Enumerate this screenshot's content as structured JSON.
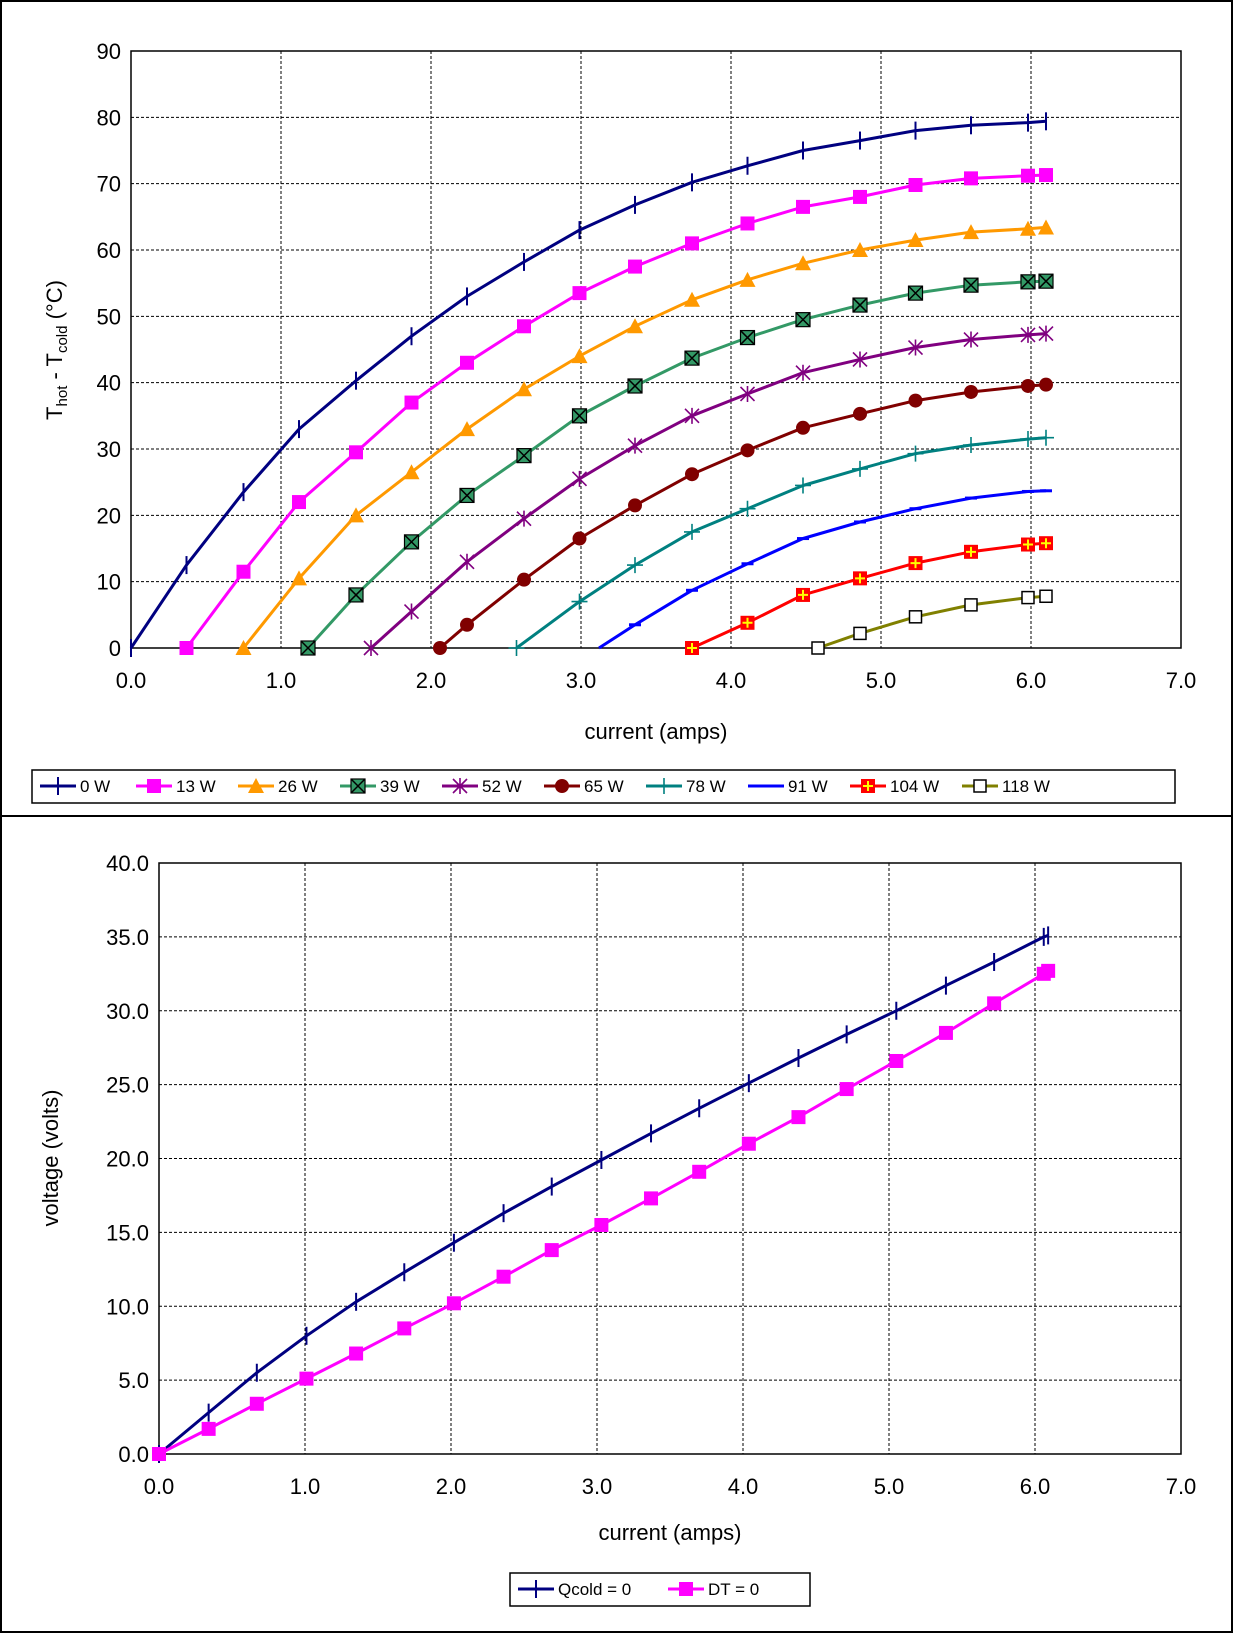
{
  "chart_data": [
    {
      "type": "line",
      "xlabel": "current (amps)",
      "ylabel": {
        "main": "T",
        "sub1": "hot",
        "mid": " - T",
        "sub2": "cold",
        "tail": " (°C)"
      },
      "xlim": [
        0,
        7
      ],
      "ylim": [
        0,
        90
      ],
      "x_ticks": [
        "0.0",
        "1.0",
        "2.0",
        "3.0",
        "4.0",
        "5.0",
        "6.0",
        "7.0"
      ],
      "y_ticks": [
        "0",
        "10",
        "20",
        "30",
        "40",
        "50",
        "60",
        "70",
        "80",
        "90"
      ],
      "grid": true,
      "legend_position": "bottom",
      "series": [
        {
          "name": "0 W",
          "color": "#000080",
          "marker": "vtick",
          "x": [
            0.0,
            0.37,
            0.75,
            1.12,
            1.5,
            1.87,
            2.24,
            2.62,
            2.99,
            3.36,
            3.74,
            4.11,
            4.48,
            4.86,
            5.23,
            5.6,
            5.98,
            6.1
          ],
          "y": [
            0,
            12.5,
            23.5,
            33,
            40.3,
            47,
            53,
            58.2,
            63,
            66.8,
            70.2,
            72.7,
            75,
            76.5,
            78,
            78.8,
            79.2,
            79.4
          ]
        },
        {
          "name": "13 W",
          "color": "#FF00FF",
          "marker": "square",
          "x": [
            0.37,
            0.75,
            1.12,
            1.5,
            1.87,
            2.24,
            2.62,
            2.99,
            3.36,
            3.74,
            4.11,
            4.48,
            4.86,
            5.23,
            5.6,
            5.98,
            6.1
          ],
          "y": [
            0,
            11.5,
            22,
            29.5,
            37,
            43,
            48.5,
            53.5,
            57.5,
            61,
            64,
            66.5,
            68,
            69.8,
            70.8,
            71.2,
            71.3
          ]
        },
        {
          "name": "26 W",
          "color": "#FF9900",
          "marker": "triangle",
          "x": [
            0.75,
            1.12,
            1.5,
            1.87,
            2.24,
            2.62,
            2.99,
            3.36,
            3.74,
            4.11,
            4.48,
            4.86,
            5.23,
            5.6,
            5.98,
            6.1
          ],
          "y": [
            0,
            10.5,
            20,
            26.5,
            33,
            39,
            44,
            48.5,
            52.5,
            55.5,
            58,
            60,
            61.5,
            62.7,
            63.2,
            63.4
          ]
        },
        {
          "name": "39 W",
          "color": "#339966",
          "marker": "xsquare",
          "x": [
            1.18,
            1.5,
            1.87,
            2.24,
            2.62,
            2.99,
            3.36,
            3.74,
            4.11,
            4.48,
            4.86,
            5.23,
            5.6,
            5.98,
            6.1
          ],
          "y": [
            0,
            8,
            16,
            23,
            29,
            35,
            39.5,
            43.7,
            46.8,
            49.5,
            51.7,
            53.5,
            54.7,
            55.2,
            55.3
          ]
        },
        {
          "name": "52 W",
          "color": "#800080",
          "marker": "star",
          "x": [
            1.6,
            1.87,
            2.24,
            2.62,
            2.99,
            3.36,
            3.74,
            4.11,
            4.48,
            4.86,
            5.23,
            5.6,
            5.98,
            6.1
          ],
          "y": [
            0,
            5.5,
            13,
            19.5,
            25.5,
            30.5,
            35,
            38.3,
            41.5,
            43.5,
            45.3,
            46.5,
            47.2,
            47.4
          ]
        },
        {
          "name": "65 W",
          "color": "#800000",
          "marker": "circle",
          "x": [
            2.06,
            2.24,
            2.62,
            2.99,
            3.36,
            3.74,
            4.11,
            4.48,
            4.86,
            5.23,
            5.6,
            5.98,
            6.1
          ],
          "y": [
            0,
            3.5,
            10.3,
            16.5,
            21.5,
            26.2,
            29.8,
            33.2,
            35.3,
            37.3,
            38.6,
            39.5,
            39.7
          ]
        },
        {
          "name": "78 W",
          "color": "#008080",
          "marker": "plus",
          "x": [
            2.57,
            2.99,
            3.36,
            3.74,
            4.11,
            4.48,
            4.86,
            5.23,
            5.6,
            5.98,
            6.1
          ],
          "y": [
            0,
            7,
            12.5,
            17.5,
            21,
            24.5,
            27,
            29.3,
            30.6,
            31.5,
            31.7
          ]
        },
        {
          "name": "91 W",
          "color": "#0000FF",
          "marker": "dash",
          "x": [
            3.12,
            3.36,
            3.74,
            4.11,
            4.48,
            4.86,
            5.23,
            5.6,
            5.98,
            6.1
          ],
          "y": [
            0,
            3.5,
            8.7,
            12.7,
            16.5,
            19,
            21,
            22.6,
            23.6,
            23.7
          ]
        },
        {
          "name": "104 W",
          "color": "#FF0000",
          "marker": "plussquare",
          "x": [
            3.74,
            4.11,
            4.48,
            4.86,
            5.23,
            5.6,
            5.98,
            6.1
          ],
          "y": [
            0,
            3.8,
            8,
            10.5,
            12.8,
            14.5,
            15.6,
            15.8
          ]
        },
        {
          "name": "118 W",
          "color": "#808000",
          "marker": "opensquare",
          "x": [
            4.58,
            4.86,
            5.23,
            5.6,
            5.98,
            6.1
          ],
          "y": [
            0,
            2.2,
            4.7,
            6.5,
            7.6,
            7.8
          ]
        }
      ]
    },
    {
      "type": "line",
      "xlabel": "current (amps)",
      "ylabel": "voltage (volts)",
      "xlim": [
        0,
        7
      ],
      "ylim": [
        0,
        40
      ],
      "x_ticks": [
        "0.0",
        "1.0",
        "2.0",
        "3.0",
        "4.0",
        "5.0",
        "6.0",
        "7.0"
      ],
      "y_ticks": [
        "0.0",
        "5.0",
        "10.0",
        "15.0",
        "20.0",
        "25.0",
        "30.0",
        "35.0",
        "40.0"
      ],
      "grid": true,
      "legend_position": "bottom",
      "series": [
        {
          "name": "Qcold = 0",
          "color": "#000080",
          "marker": "vtick",
          "x": [
            0.0,
            0.34,
            0.67,
            1.01,
            1.35,
            1.68,
            2.02,
            2.36,
            2.69,
            3.03,
            3.37,
            3.7,
            4.04,
            4.38,
            4.71,
            5.05,
            5.39,
            5.72,
            6.06,
            6.09
          ],
          "y": [
            0,
            2.8,
            5.5,
            8.0,
            10.3,
            12.3,
            14.3,
            16.3,
            18.1,
            19.9,
            21.7,
            23.4,
            25.1,
            26.8,
            28.4,
            30.0,
            31.7,
            33.3,
            35.0,
            35.1
          ]
        },
        {
          "name": "DT = 0",
          "color": "#FF00FF",
          "marker": "square",
          "x": [
            0.0,
            0.34,
            0.67,
            1.01,
            1.35,
            1.68,
            2.02,
            2.36,
            2.69,
            3.03,
            3.37,
            3.7,
            4.04,
            4.38,
            4.71,
            5.05,
            5.39,
            5.72,
            6.06,
            6.09
          ],
          "y": [
            0,
            1.7,
            3.4,
            5.1,
            6.8,
            8.5,
            10.2,
            12.0,
            13.8,
            15.5,
            17.3,
            19.1,
            21.0,
            22.8,
            24.7,
            26.6,
            28.5,
            30.5,
            32.5,
            32.7
          ]
        }
      ]
    }
  ]
}
